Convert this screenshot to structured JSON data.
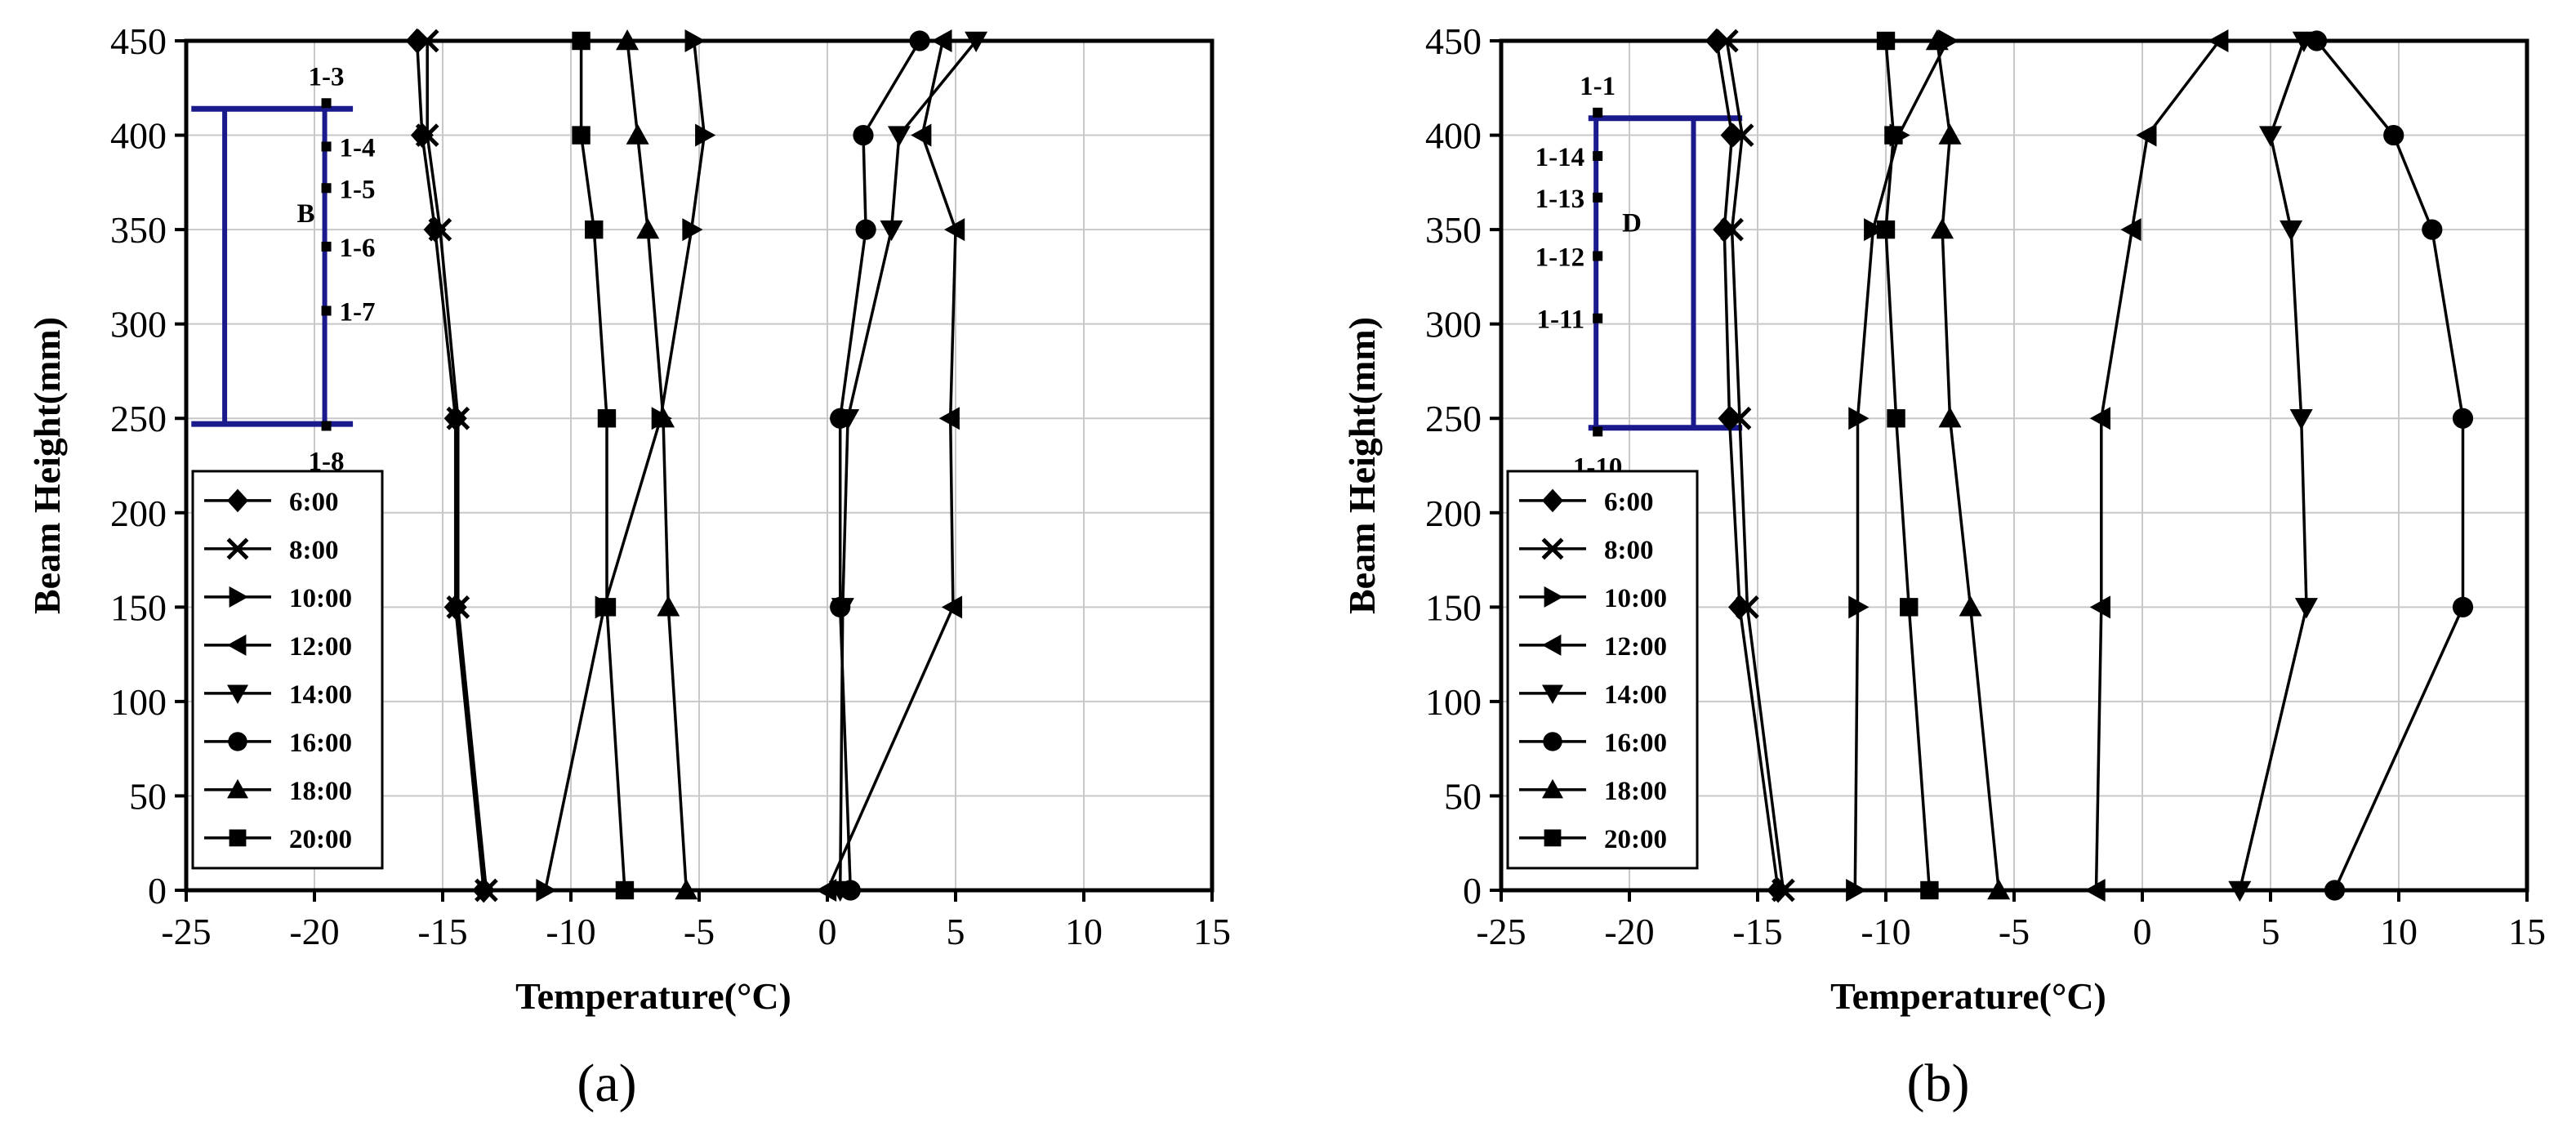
{
  "figure": {
    "panel_labels": [
      "(a)",
      "(b)"
    ],
    "axis_color": "#000000",
    "grid_color": "#c8c8c8",
    "inset_color": "#1a1a8c"
  },
  "chart_data": [
    {
      "type": "line",
      "panel": "(a)",
      "title": "",
      "xlabel": "Temperature(°C)",
      "ylabel": "Beam Height(mm)",
      "xlim": [
        -25,
        15
      ],
      "ylim": [
        0,
        450
      ],
      "xticks": [
        -25,
        -20,
        -15,
        -10,
        -5,
        0,
        5,
        10,
        15
      ],
      "yticks": [
        0,
        50,
        100,
        150,
        200,
        250,
        300,
        350,
        400,
        450
      ],
      "grid": true,
      "legend_position": "left-lower",
      "series": [
        {
          "name": "6:00",
          "marker": "diamond",
          "points": [
            [
              -13.4,
              0
            ],
            [
              -14.5,
              150
            ],
            [
              -14.5,
              250
            ],
            [
              -15.3,
              350
            ],
            [
              -15.8,
              400
            ],
            [
              -16.0,
              450
            ]
          ]
        },
        {
          "name": "8:00",
          "marker": "x",
          "points": [
            [
              -13.3,
              0
            ],
            [
              -14.4,
              150
            ],
            [
              -14.4,
              250
            ],
            [
              -15.1,
              350
            ],
            [
              -15.6,
              400
            ],
            [
              -15.6,
              450
            ]
          ]
        },
        {
          "name": "10:00",
          "marker": "tri-right",
          "points": [
            [
              -11.0,
              0
            ],
            [
              -8.7,
              150
            ],
            [
              -6.5,
              250
            ],
            [
              -5.3,
              350
            ],
            [
              -4.8,
              400
            ],
            [
              -5.2,
              450
            ]
          ]
        },
        {
          "name": "12:00",
          "marker": "tri-left",
          "points": [
            [
              0.0,
              0
            ],
            [
              4.9,
              150
            ],
            [
              4.8,
              250
            ],
            [
              5.0,
              350
            ],
            [
              3.7,
              400
            ],
            [
              4.5,
              450
            ]
          ]
        },
        {
          "name": "14:00",
          "marker": "tri-down",
          "points": [
            [
              0.5,
              0
            ],
            [
              0.6,
              150
            ],
            [
              0.8,
              250
            ],
            [
              2.5,
              350
            ],
            [
              2.8,
              400
            ],
            [
              5.8,
              450
            ]
          ]
        },
        {
          "name": "16:00",
          "marker": "circle",
          "points": [
            [
              0.9,
              0
            ],
            [
              0.5,
              150
            ],
            [
              0.5,
              250
            ],
            [
              1.5,
              350
            ],
            [
              1.4,
              400
            ],
            [
              3.6,
              450
            ]
          ]
        },
        {
          "name": "18:00",
          "marker": "tri-up",
          "points": [
            [
              -5.5,
              0
            ],
            [
              -6.2,
              150
            ],
            [
              -6.4,
              250
            ],
            [
              -7.0,
              350
            ],
            [
              -7.4,
              400
            ],
            [
              -7.8,
              450
            ]
          ]
        },
        {
          "name": "20:00",
          "marker": "square",
          "points": [
            [
              -7.9,
              0
            ],
            [
              -8.6,
              150
            ],
            [
              -8.6,
              250
            ],
            [
              -9.1,
              350
            ],
            [
              -9.6,
              400
            ],
            [
              -9.6,
              450
            ]
          ]
        }
      ],
      "inset": {
        "section_letter": "B",
        "section_letter_side": "left",
        "rect": {
          "x0": -23.5,
          "x1": -19.6,
          "y0": 247,
          "y1": 414
        },
        "flange": {
          "x0": -24.8,
          "x1": -18.5
        },
        "sensors": [
          {
            "label": "1-3",
            "y": 417,
            "label_pos": "above"
          },
          {
            "label": "1-4",
            "y": 394,
            "label_pos": "right"
          },
          {
            "label": "1-5",
            "y": 372,
            "label_pos": "right"
          },
          {
            "label": "1-6",
            "y": 341,
            "label_pos": "right"
          },
          {
            "label": "1-7",
            "y": 307,
            "label_pos": "right"
          },
          {
            "label": "1-8",
            "y": 246,
            "label_pos": "below"
          }
        ]
      }
    },
    {
      "type": "line",
      "panel": "(b)",
      "title": "",
      "xlabel": "Temperature(°C)",
      "ylabel": "Beam Height(mm)",
      "xlim": [
        -25,
        15
      ],
      "ylim": [
        0,
        450
      ],
      "xticks": [
        -25,
        -20,
        -15,
        -10,
        -5,
        0,
        5,
        10,
        15
      ],
      "yticks": [
        0,
        50,
        100,
        150,
        200,
        250,
        300,
        350,
        400,
        450
      ],
      "grid": true,
      "legend_position": "left-lower",
      "series": [
        {
          "name": "6:00",
          "marker": "diamond",
          "points": [
            [
              -14.2,
              0
            ],
            [
              -15.7,
              150
            ],
            [
              -16.1,
              250
            ],
            [
              -16.3,
              350
            ],
            [
              -16.0,
              400
            ],
            [
              -16.6,
              450
            ]
          ]
        },
        {
          "name": "8:00",
          "marker": "x",
          "points": [
            [
              -14.0,
              0
            ],
            [
              -15.4,
              150
            ],
            [
              -15.7,
              250
            ],
            [
              -16.0,
              350
            ],
            [
              -15.6,
              400
            ],
            [
              -16.2,
              450
            ]
          ]
        },
        {
          "name": "10:00",
          "marker": "tri-right",
          "points": [
            [
              -11.2,
              0
            ],
            [
              -11.1,
              150
            ],
            [
              -11.1,
              250
            ],
            [
              -10.5,
              350
            ],
            [
              -9.5,
              400
            ],
            [
              -7.6,
              450
            ]
          ]
        },
        {
          "name": "12:00",
          "marker": "tri-left",
          "points": [
            [
              -1.8,
              0
            ],
            [
              -1.6,
              150
            ],
            [
              -1.6,
              250
            ],
            [
              -0.4,
              350
            ],
            [
              0.2,
              400
            ],
            [
              3.0,
              450
            ]
          ]
        },
        {
          "name": "14:00",
          "marker": "tri-down",
          "points": [
            [
              3.8,
              0
            ],
            [
              6.4,
              150
            ],
            [
              6.2,
              250
            ],
            [
              5.8,
              350
            ],
            [
              5.0,
              400
            ],
            [
              6.3,
              450
            ]
          ]
        },
        {
          "name": "16:00",
          "marker": "circle",
          "points": [
            [
              7.5,
              0
            ],
            [
              12.5,
              150
            ],
            [
              12.5,
              250
            ],
            [
              11.3,
              350
            ],
            [
              9.8,
              400
            ],
            [
              6.8,
              450
            ]
          ]
        },
        {
          "name": "18:00",
          "marker": "tri-up",
          "points": [
            [
              -5.6,
              0
            ],
            [
              -6.7,
              150
            ],
            [
              -7.5,
              250
            ],
            [
              -7.8,
              350
            ],
            [
              -7.5,
              400
            ],
            [
              -8.0,
              450
            ]
          ]
        },
        {
          "name": "20:00",
          "marker": "square",
          "points": [
            [
              -8.3,
              0
            ],
            [
              -9.1,
              150
            ],
            [
              -9.6,
              250
            ],
            [
              -10.0,
              350
            ],
            [
              -9.7,
              400
            ],
            [
              -10.0,
              450
            ]
          ]
        }
      ],
      "inset": {
        "section_letter": "D",
        "section_letter_side": "right",
        "rect": {
          "x0": -21.3,
          "x1": -17.5,
          "y0": 245,
          "y1": 409
        },
        "flange": {
          "x0": -21.6,
          "x1": -15.6
        },
        "sensors": [
          {
            "label": "1-1",
            "y": 412,
            "label_pos": "above"
          },
          {
            "label": "1-14",
            "y": 389,
            "label_pos": "left"
          },
          {
            "label": "1-13",
            "y": 367,
            "label_pos": "left"
          },
          {
            "label": "1-12",
            "y": 336,
            "label_pos": "left"
          },
          {
            "label": "1-11",
            "y": 303,
            "label_pos": "left"
          },
          {
            "label": "1-10",
            "y": 243,
            "label_pos": "below"
          }
        ]
      }
    }
  ]
}
